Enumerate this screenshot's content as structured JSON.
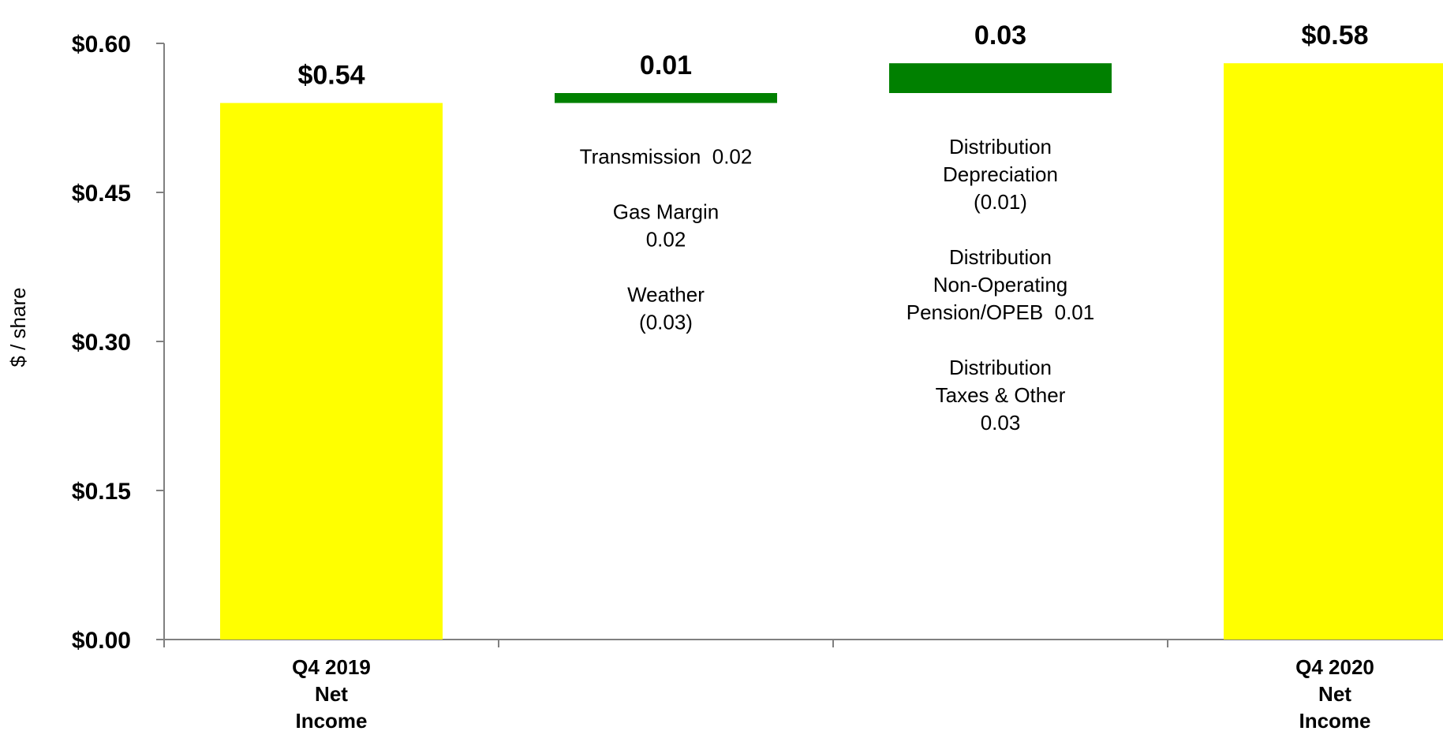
{
  "chart_data": {
    "type": "bar",
    "subtype": "waterfall",
    "title": "",
    "xlabel": "",
    "ylabel": "$ / share",
    "ylim": [
      0,
      0.6
    ],
    "yticks": [
      0,
      0.15,
      0.3,
      0.45,
      0.6
    ],
    "ytick_labels": [
      "$0.00",
      "$0.15",
      "$0.30",
      "$0.45",
      "$0.60"
    ],
    "grid": false,
    "colors": {
      "total": "#FFFF00",
      "increase": "#008000",
      "axis": "#808080"
    },
    "bars": [
      {
        "category_lines": [
          "Q4 2019",
          "Net",
          "Income"
        ],
        "kind": "total",
        "base": 0,
        "value": 0.54,
        "label": "$0.54",
        "annotation_lines": []
      },
      {
        "category_lines": [],
        "kind": "increase",
        "base": 0.54,
        "value": 0.01,
        "label": "0.01",
        "annotation_lines": [
          "Transmission  0.02",
          "",
          "Gas Margin",
          "0.02",
          "",
          "Weather",
          "(0.03)"
        ]
      },
      {
        "category_lines": [],
        "kind": "increase",
        "base": 0.55,
        "value": 0.03,
        "label": "0.03",
        "annotation_lines": [
          "Distribution",
          "Depreciation",
          "(0.01)",
          "",
          "Distribution",
          "Non-Operating",
          "Pension/OPEB  0.01",
          "",
          "Distribution",
          "Taxes & Other",
          "0.03"
        ]
      },
      {
        "category_lines": [
          "Q4 2020",
          "Net",
          "Income"
        ],
        "kind": "total",
        "base": 0,
        "value": 0.58,
        "label": "$0.58",
        "annotation_lines": []
      }
    ]
  }
}
